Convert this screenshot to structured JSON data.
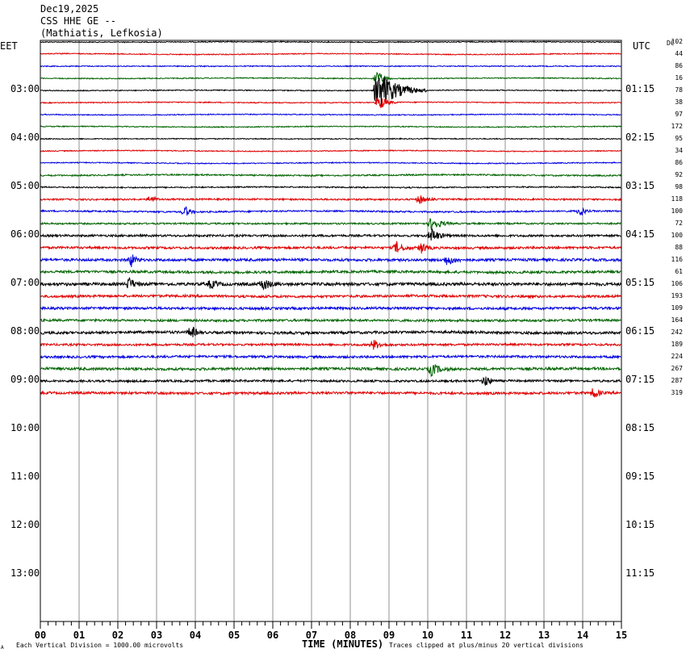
{
  "header": {
    "date": "Dec19,2025",
    "station": "CSS HHE GE --",
    "location": "(Mathiatis, Lefkosia)"
  },
  "labels": {
    "left_tz": "EET",
    "right_tz": "UTC",
    "dc": "DC",
    "x_axis_title": "TIME (MINUTES)",
    "scale_note": "Each Vertical Division = 1000.00 microvolts",
    "clip_note": "Traces clipped at plus/minus 20 vertical divisions",
    "corner_mark": "A"
  },
  "colors": {
    "trace_cycle": [
      "#000000",
      "#e00000",
      "#0000e0",
      "#006400"
    ],
    "grid": "#909090",
    "frame": "#000000"
  },
  "chart_data": {
    "type": "line",
    "title": "CSS HHE GE --",
    "xlabel": "TIME (MINUTES)",
    "xlim": [
      0,
      15
    ],
    "x_ticks": [
      "00",
      "01",
      "02",
      "03",
      "04",
      "05",
      "06",
      "07",
      "08",
      "09",
      "10",
      "11",
      "12",
      "13",
      "14",
      "15"
    ],
    "left_hour_labels": [
      "03:00",
      "04:00",
      "05:00",
      "06:00",
      "07:00",
      "08:00",
      "09:00",
      "10:00",
      "11:00",
      "12:00",
      "13:00"
    ],
    "right_hour_labels": [
      "01:15",
      "02:15",
      "03:15",
      "04:15",
      "05:15",
      "06:15",
      "07:15",
      "08:15",
      "09:15",
      "10:15",
      "11:15"
    ],
    "rows_total": 48,
    "rows_with_data": 30,
    "dc_offsets": [
      "102",
      "44",
      "86",
      "16",
      "78",
      "38",
      "97",
      "172",
      "95",
      "34",
      "86",
      "92",
      "98",
      "118",
      "100",
      "72",
      "100",
      "88",
      "116",
      "61",
      "106",
      "193",
      "109",
      "164",
      "242",
      "189",
      "224",
      "267",
      "287",
      "319"
    ],
    "row_noise": [
      0.6,
      0.6,
      0.6,
      0.6,
      0.6,
      0.6,
      0.6,
      0.6,
      0.6,
      0.6,
      0.6,
      0.9,
      0.8,
      1.0,
      1.0,
      1.0,
      1.3,
      1.4,
      1.6,
      1.5,
      1.8,
      1.5,
      1.5,
      1.4,
      1.6,
      1.3,
      1.4,
      1.6,
      1.3,
      1.5
    ],
    "events": [
      {
        "row": 4,
        "minute": 8.7,
        "amplitude": 26,
        "duration": 1.3
      },
      {
        "row": 5,
        "minute": 8.75,
        "amplitude": 10,
        "duration": 0.5
      },
      {
        "row": 3,
        "minute": 8.7,
        "amplitude": 10,
        "duration": 0.4
      },
      {
        "row": 13,
        "minute": 2.85,
        "amplitude": 5,
        "duration": 0.3
      },
      {
        "row": 13,
        "minute": 9.8,
        "amplitude": 6,
        "duration": 0.4
      },
      {
        "row": 14,
        "minute": 3.75,
        "amplitude": 7,
        "duration": 0.25
      },
      {
        "row": 14,
        "minute": 13.95,
        "amplitude": 7,
        "duration": 0.25
      },
      {
        "row": 15,
        "minute": 10.1,
        "amplitude": 8,
        "duration": 0.6
      },
      {
        "row": 16,
        "minute": 10.1,
        "amplitude": 9,
        "duration": 0.5
      },
      {
        "row": 17,
        "minute": 9.2,
        "amplitude": 7,
        "duration": 0.5
      },
      {
        "row": 17,
        "minute": 9.85,
        "amplitude": 7,
        "duration": 0.3
      },
      {
        "row": 18,
        "minute": 2.35,
        "amplitude": 8,
        "duration": 0.3
      },
      {
        "row": 18,
        "minute": 10.5,
        "amplitude": 6,
        "duration": 0.5
      },
      {
        "row": 20,
        "minute": 2.3,
        "amplitude": 8,
        "duration": 0.3
      },
      {
        "row": 20,
        "minute": 5.75,
        "amplitude": 7,
        "duration": 0.5
      },
      {
        "row": 20,
        "minute": 4.4,
        "amplitude": 5,
        "duration": 0.4
      },
      {
        "row": 24,
        "minute": 3.9,
        "amplitude": 8,
        "duration": 0.3
      },
      {
        "row": 25,
        "minute": 8.6,
        "amplitude": 6,
        "duration": 0.5
      },
      {
        "row": 27,
        "minute": 10.1,
        "amplitude": 8,
        "duration": 0.5
      },
      {
        "row": 28,
        "minute": 11.5,
        "amplitude": 7,
        "duration": 0.3
      },
      {
        "row": 29,
        "minute": 14.3,
        "amplitude": 7,
        "duration": 0.3
      }
    ]
  }
}
